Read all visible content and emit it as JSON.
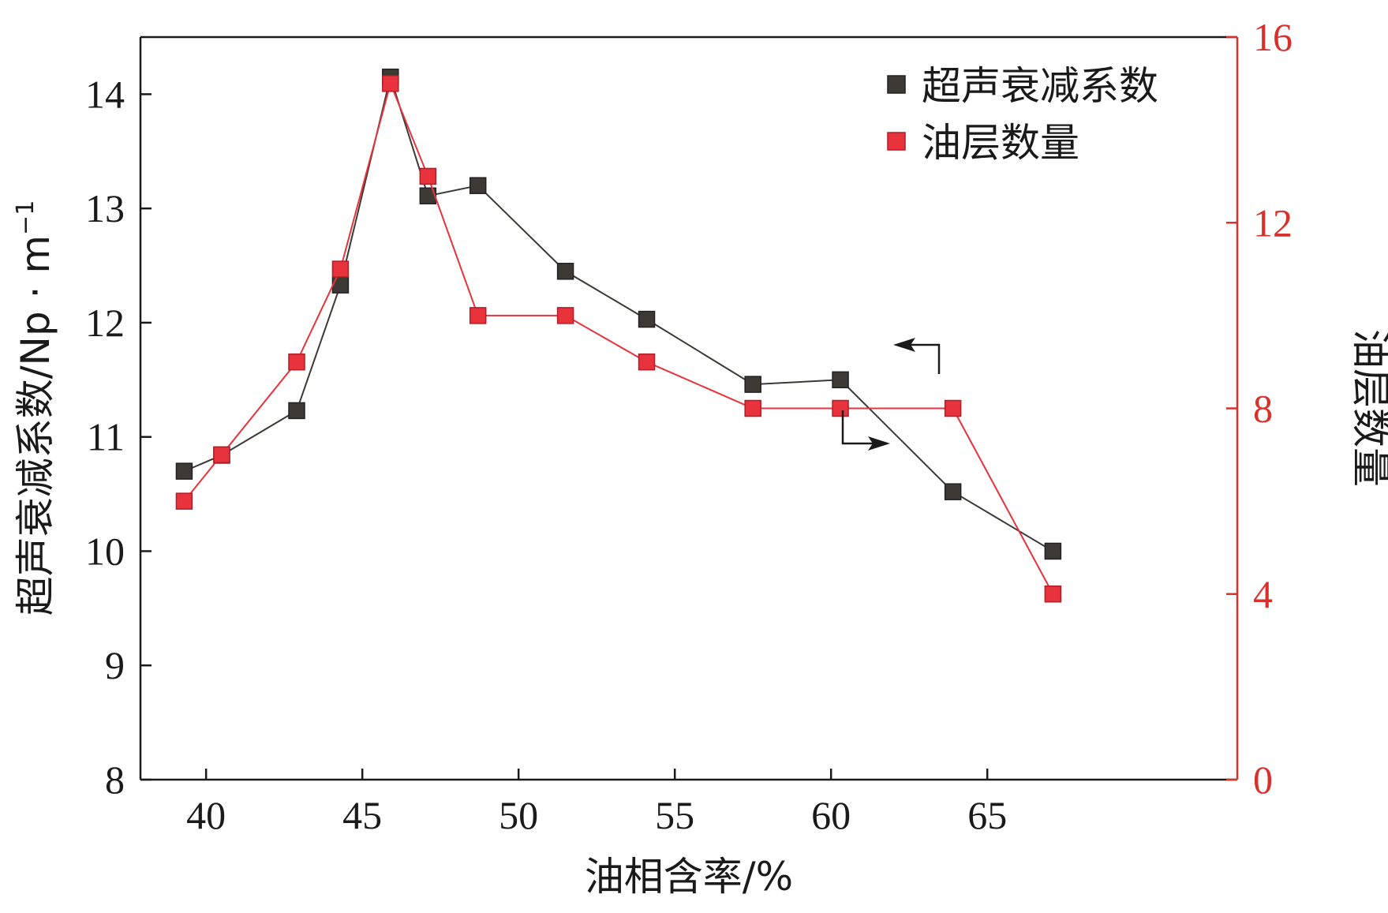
{
  "chart_data": {
    "type": "line",
    "xlabel": "油相含率/%",
    "ylabel": "超声衰减系数/Np · m",
    "ylabel_superscript": "−1",
    "y2label": "油层数量",
    "xlim": [
      37.9,
      73
    ],
    "ylim": [
      8,
      14.5
    ],
    "y2lim": [
      0,
      16
    ],
    "x_ticks": [
      40,
      45,
      50,
      55,
      60,
      65
    ],
    "y_ticks": [
      8,
      9,
      10,
      11,
      12,
      13,
      14
    ],
    "y2_ticks": [
      0,
      4,
      8,
      12,
      16
    ],
    "legend_position": "top-right",
    "series": [
      {
        "name": "超声衰减系数",
        "axis": "left",
        "color": "#3d3a36",
        "x": [
          39.3,
          40.5,
          42.9,
          44.3,
          45.9,
          47.1,
          48.7,
          51.5,
          54.1,
          57.5,
          60.3,
          63.9,
          67.1
        ],
        "values": [
          10.7,
          10.84,
          11.23,
          12.33,
          14.15,
          13.11,
          13.2,
          12.45,
          12.03,
          11.46,
          11.5,
          10.52,
          10.0
        ]
      },
      {
        "name": "油层数量",
        "axis": "right",
        "color": "#e8323c",
        "x": [
          39.3,
          40.5,
          42.9,
          44.3,
          45.9,
          47.1,
          48.7,
          51.5,
          54.1,
          57.5,
          60.3,
          63.9,
          67.1
        ],
        "values": [
          6,
          7,
          9,
          11,
          15,
          13,
          10,
          10,
          9,
          8,
          8,
          8,
          4
        ]
      }
    ]
  },
  "colors": {
    "left_axis": "#1a1a1a",
    "right_axis": "#d8312c"
  }
}
